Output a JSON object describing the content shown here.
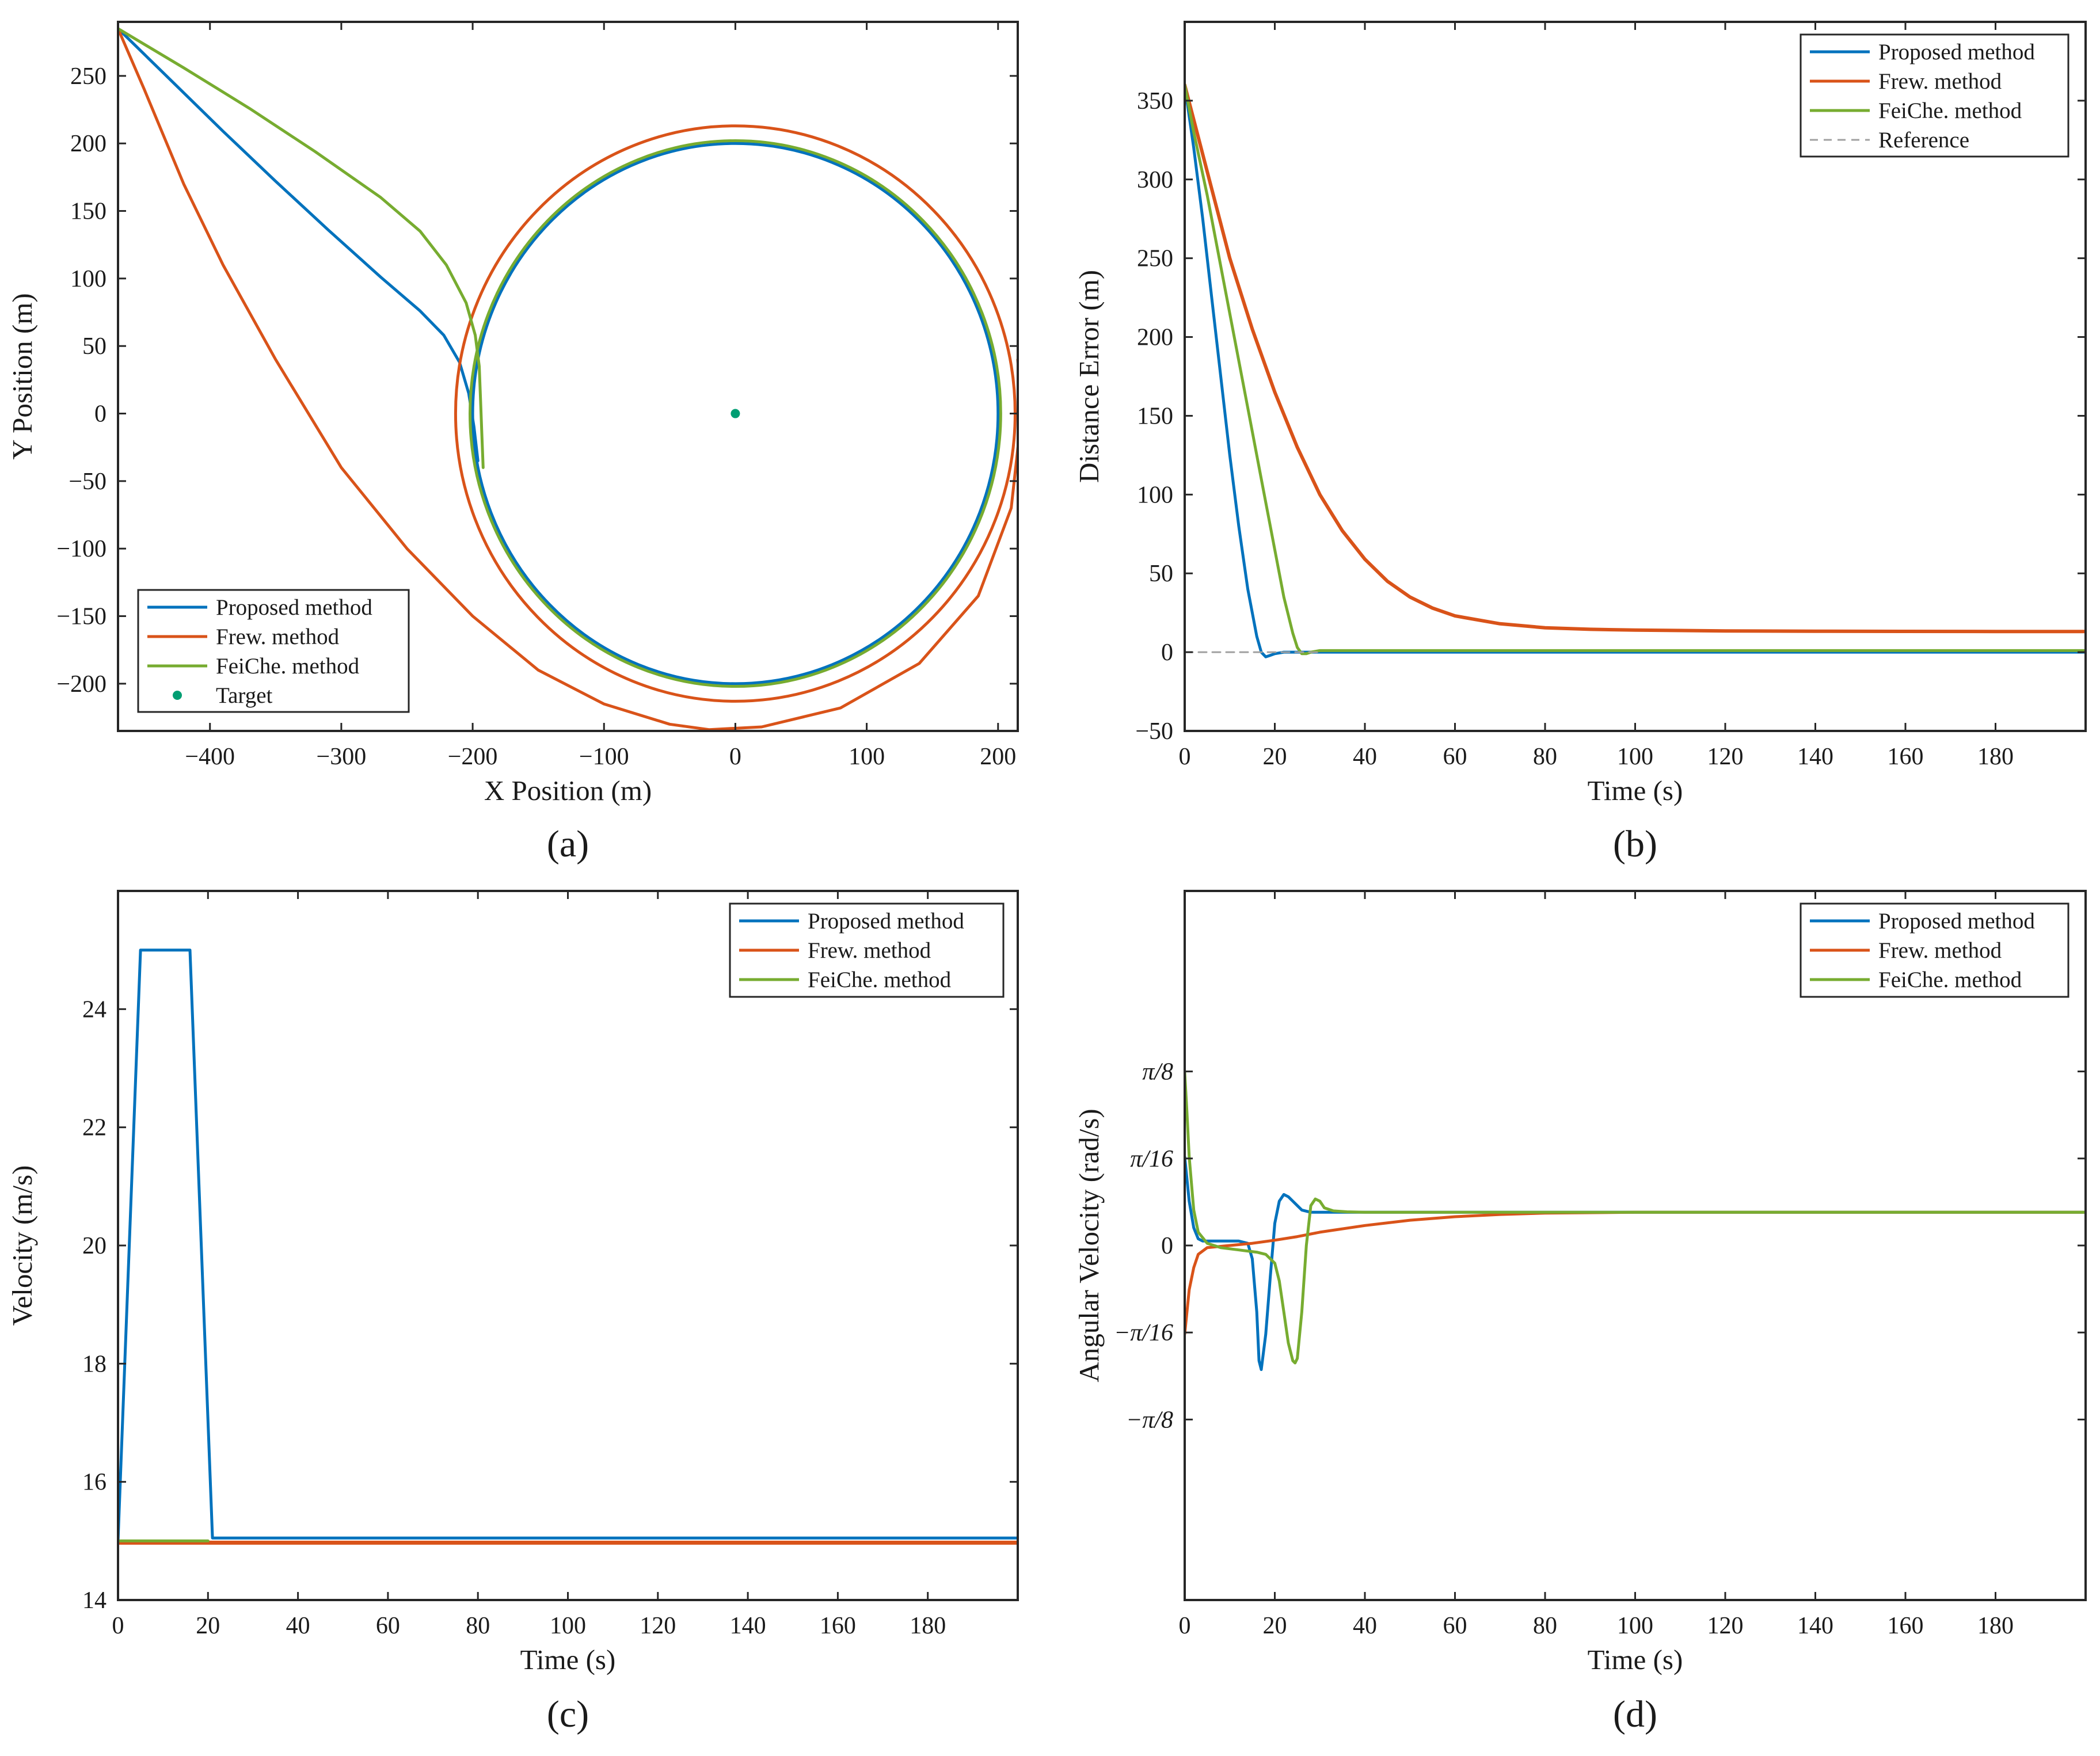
{
  "chart_data": [
    {
      "panel": "(a)",
      "type": "line",
      "xlabel": "X Position (m)",
      "ylabel": "Y Position (m)",
      "xlim": [
        -470,
        215
      ],
      "ylim": [
        -235,
        290
      ],
      "xticks": [
        -400,
        -300,
        -200,
        -100,
        0,
        100,
        200
      ],
      "yticks": [
        -200,
        -150,
        -100,
        -50,
        0,
        50,
        100,
        150,
        200,
        250
      ],
      "xtick_labels": [
        "−400",
        "−300",
        "−200",
        "−100",
        "0",
        "100",
        "200"
      ],
      "ytick_labels": [
        "−200",
        "−150",
        "−100",
        "−50",
        "0",
        "50",
        "100",
        "150",
        "200",
        "250"
      ],
      "legend_position": "bottom-left",
      "series": [
        {
          "name": "Proposed method",
          "color": "#0072BD",
          "approach": [
            [
              -470,
              285
            ],
            [
              -430,
              247
            ],
            [
              -390,
              209
            ],
            [
              -350,
              172
            ],
            [
              -310,
              136
            ],
            [
              -270,
              101
            ],
            [
              -240,
              76
            ],
            [
              -222,
              58
            ],
            [
              -210,
              38
            ],
            [
              -203,
              15
            ],
            [
              -199,
              -10
            ],
            [
              -196,
              -35
            ]
          ],
          "orbit": {
            "cx": 0,
            "cy": 0,
            "r": 200
          }
        },
        {
          "name": "Frew. method",
          "color": "#D95319",
          "approach": [
            [
              -470,
              285
            ],
            [
              -450,
              240
            ],
            [
              -420,
              170
            ],
            [
              -390,
              110
            ],
            [
              -350,
              40
            ],
            [
              -300,
              -40
            ],
            [
              -250,
              -100
            ],
            [
              -200,
              -150
            ],
            [
              -150,
              -190
            ],
            [
              -100,
              -215
            ],
            [
              -50,
              -230
            ],
            [
              -20,
              -234
            ],
            [
              20,
              -232
            ],
            [
              80,
              -218
            ],
            [
              140,
              -185
            ],
            [
              185,
              -135
            ],
            [
              210,
              -70
            ],
            [
              218,
              0
            ],
            [
              215,
              40
            ]
          ],
          "orbit": {
            "cx": 0,
            "cy": 0,
            "r": 213
          }
        },
        {
          "name": "FeiChe. method",
          "color": "#77AC30",
          "approach": [
            [
              -470,
              285
            ],
            [
              -420,
              256
            ],
            [
              -370,
              226
            ],
            [
              -320,
              194
            ],
            [
              -270,
              160
            ],
            [
              -240,
              135
            ],
            [
              -220,
              110
            ],
            [
              -205,
              82
            ],
            [
              -198,
              58
            ],
            [
              -195,
              35
            ],
            [
              -194,
              10
            ],
            [
              -193,
              -15
            ],
            [
              -192,
              -40
            ]
          ],
          "orbit": {
            "cx": 0,
            "cy": 0,
            "r": 202
          }
        },
        {
          "name": "Target",
          "color": "#009E73",
          "marker": "dot",
          "x": [
            0
          ],
          "y": [
            0
          ]
        }
      ]
    },
    {
      "panel": "(b)",
      "type": "line",
      "xlabel": "Time (s)",
      "ylabel": "Distance Error (m)",
      "xlim": [
        0,
        200
      ],
      "ylim": [
        -50,
        400
      ],
      "xticks": [
        0,
        20,
        40,
        60,
        80,
        100,
        120,
        140,
        160,
        180
      ],
      "yticks": [
        -50,
        0,
        50,
        100,
        150,
        200,
        250,
        300,
        350
      ],
      "xtick_labels": [
        "0",
        "20",
        "40",
        "60",
        "80",
        "100",
        "120",
        "140",
        "160",
        "180"
      ],
      "ytick_labels": [
        "−50",
        "0",
        "50",
        "100",
        "150",
        "200",
        "250",
        "300",
        "350"
      ],
      "legend_position": "top-right",
      "series": [
        {
          "name": "Proposed method",
          "color": "#0072BD",
          "x": [
            0,
            2,
            4,
            6,
            8,
            10,
            12,
            14,
            16,
            17,
            18,
            19,
            20,
            22,
            25,
            30,
            40,
            60,
            100,
            150,
            200
          ],
          "y": [
            360,
            320,
            275,
            225,
            175,
            125,
            80,
            40,
            10,
            0,
            -3,
            -2,
            -1,
            0,
            0,
            0,
            0,
            0,
            0,
            0,
            0
          ]
        },
        {
          "name": "Frew. method",
          "color": "#D95319",
          "x": [
            0,
            5,
            10,
            15,
            20,
            25,
            30,
            35,
            40,
            45,
            50,
            55,
            60,
            70,
            80,
            90,
            100,
            120,
            140,
            160,
            180,
            200
          ],
          "y": [
            360,
            305,
            250,
            205,
            165,
            130,
            100,
            77,
            59,
            45,
            35,
            28,
            23,
            18,
            15.5,
            14.5,
            14,
            13.5,
            13.3,
            13.2,
            13.1,
            13.1
          ],
          "width": 6
        },
        {
          "name": "FeiChe. method",
          "color": "#77AC30",
          "x": [
            0,
            2,
            5,
            8,
            11,
            14,
            17,
            20,
            22,
            24,
            25,
            26,
            27,
            28,
            30,
            35,
            50,
            100,
            150,
            200
          ],
          "y": [
            360,
            330,
            290,
            245,
            200,
            155,
            110,
            65,
            35,
            12,
            3,
            -1,
            -1,
            0,
            1,
            1,
            1,
            1,
            1,
            1
          ]
        },
        {
          "name": "Reference",
          "color": "#a0a0a0",
          "dashed": true,
          "x": [
            0,
            30
          ],
          "y": [
            0,
            0
          ]
        }
      ]
    },
    {
      "panel": "(c)",
      "type": "line",
      "xlabel": "Time (s)",
      "ylabel": "Velocity (m/s)",
      "xlim": [
        0,
        200
      ],
      "ylim": [
        14,
        26
      ],
      "xticks": [
        0,
        20,
        40,
        60,
        80,
        100,
        120,
        140,
        160,
        180
      ],
      "yticks": [
        14,
        16,
        18,
        20,
        22,
        24
      ],
      "xtick_labels": [
        "0",
        "20",
        "40",
        "60",
        "80",
        "100",
        "120",
        "140",
        "160",
        "180"
      ],
      "ytick_labels": [
        "14",
        "16",
        "18",
        "20",
        "22",
        "24"
      ],
      "legend_position": "top-right",
      "series": [
        {
          "name": "Proposed method",
          "color": "#0072BD",
          "x": [
            0,
            5,
            16,
            21,
            26,
            200
          ],
          "y": [
            15,
            25,
            25,
            15.05,
            15.05,
            15.05
          ]
        },
        {
          "name": "Frew. method",
          "color": "#D95319",
          "x": [
            0,
            200
          ],
          "y": [
            14.97,
            14.97
          ],
          "width": 7
        },
        {
          "name": "FeiChe. method",
          "color": "#77AC30",
          "x": [
            0,
            20
          ],
          "y": [
            15,
            15
          ]
        }
      ]
    },
    {
      "panel": "(d)",
      "type": "line",
      "xlabel": "Time (s)",
      "ylabel": "Angular Velocity (rad/s)",
      "xlim": [
        0,
        200
      ],
      "ylim": [
        -0.8,
        0.8
      ],
      "xticks": [
        0,
        20,
        40,
        60,
        80,
        100,
        120,
        140,
        160,
        180
      ],
      "yticks": [
        -0.3927,
        -0.19635,
        0,
        0.19635,
        0.3927
      ],
      "xtick_labels": [
        "0",
        "20",
        "40",
        "60",
        "80",
        "100",
        "120",
        "140",
        "160",
        "180"
      ],
      "ytick_labels": [
        "−π/8",
        "−π/16",
        "0",
        "π/16",
        "π/8"
      ],
      "legend_position": "top-right",
      "series": [
        {
          "name": "Proposed method",
          "color": "#0072BD",
          "x": [
            0,
            1,
            2,
            3,
            4,
            6,
            8,
            10,
            12,
            14,
            15,
            16,
            16.5,
            17,
            18,
            19,
            20,
            21,
            22,
            23,
            24,
            25,
            26,
            28,
            30,
            40,
            60,
            100,
            150,
            200
          ],
          "y": [
            0.2,
            0.1,
            0.04,
            0.015,
            0.01,
            0.01,
            0.01,
            0.01,
            0.01,
            0.005,
            -0.03,
            -0.15,
            -0.26,
            -0.28,
            -0.2,
            -0.07,
            0.05,
            0.1,
            0.115,
            0.11,
            0.1,
            0.09,
            0.08,
            0.075,
            0.075,
            0.075,
            0.075,
            0.075,
            0.075,
            0.075
          ]
        },
        {
          "name": "Frew. method",
          "color": "#D95319",
          "x": [
            0,
            1,
            2,
            3,
            5,
            10,
            15,
            20,
            25,
            30,
            40,
            50,
            60,
            70,
            80,
            100,
            150,
            200
          ],
          "y": [
            -0.2,
            -0.1,
            -0.05,
            -0.02,
            -0.005,
            0.0,
            0.005,
            0.012,
            0.02,
            0.03,
            0.045,
            0.057,
            0.065,
            0.07,
            0.073,
            0.075,
            0.075,
            0.075
          ]
        },
        {
          "name": "FeiChe. method",
          "color": "#77AC30",
          "x": [
            0,
            0.5,
            1,
            2,
            3,
            5,
            8,
            12,
            16,
            18,
            20,
            21,
            22,
            23,
            24,
            24.5,
            25,
            26,
            27,
            28,
            29,
            30,
            31,
            33,
            36,
            40,
            60,
            100,
            200
          ],
          "y": [
            0.39,
            0.3,
            0.2,
            0.08,
            0.03,
            0.005,
            -0.005,
            -0.01,
            -0.015,
            -0.02,
            -0.04,
            -0.08,
            -0.15,
            -0.22,
            -0.26,
            -0.265,
            -0.255,
            -0.15,
            0.0,
            0.09,
            0.105,
            0.1,
            0.085,
            0.078,
            0.076,
            0.075,
            0.075,
            0.075,
            0.075
          ]
        }
      ]
    }
  ]
}
